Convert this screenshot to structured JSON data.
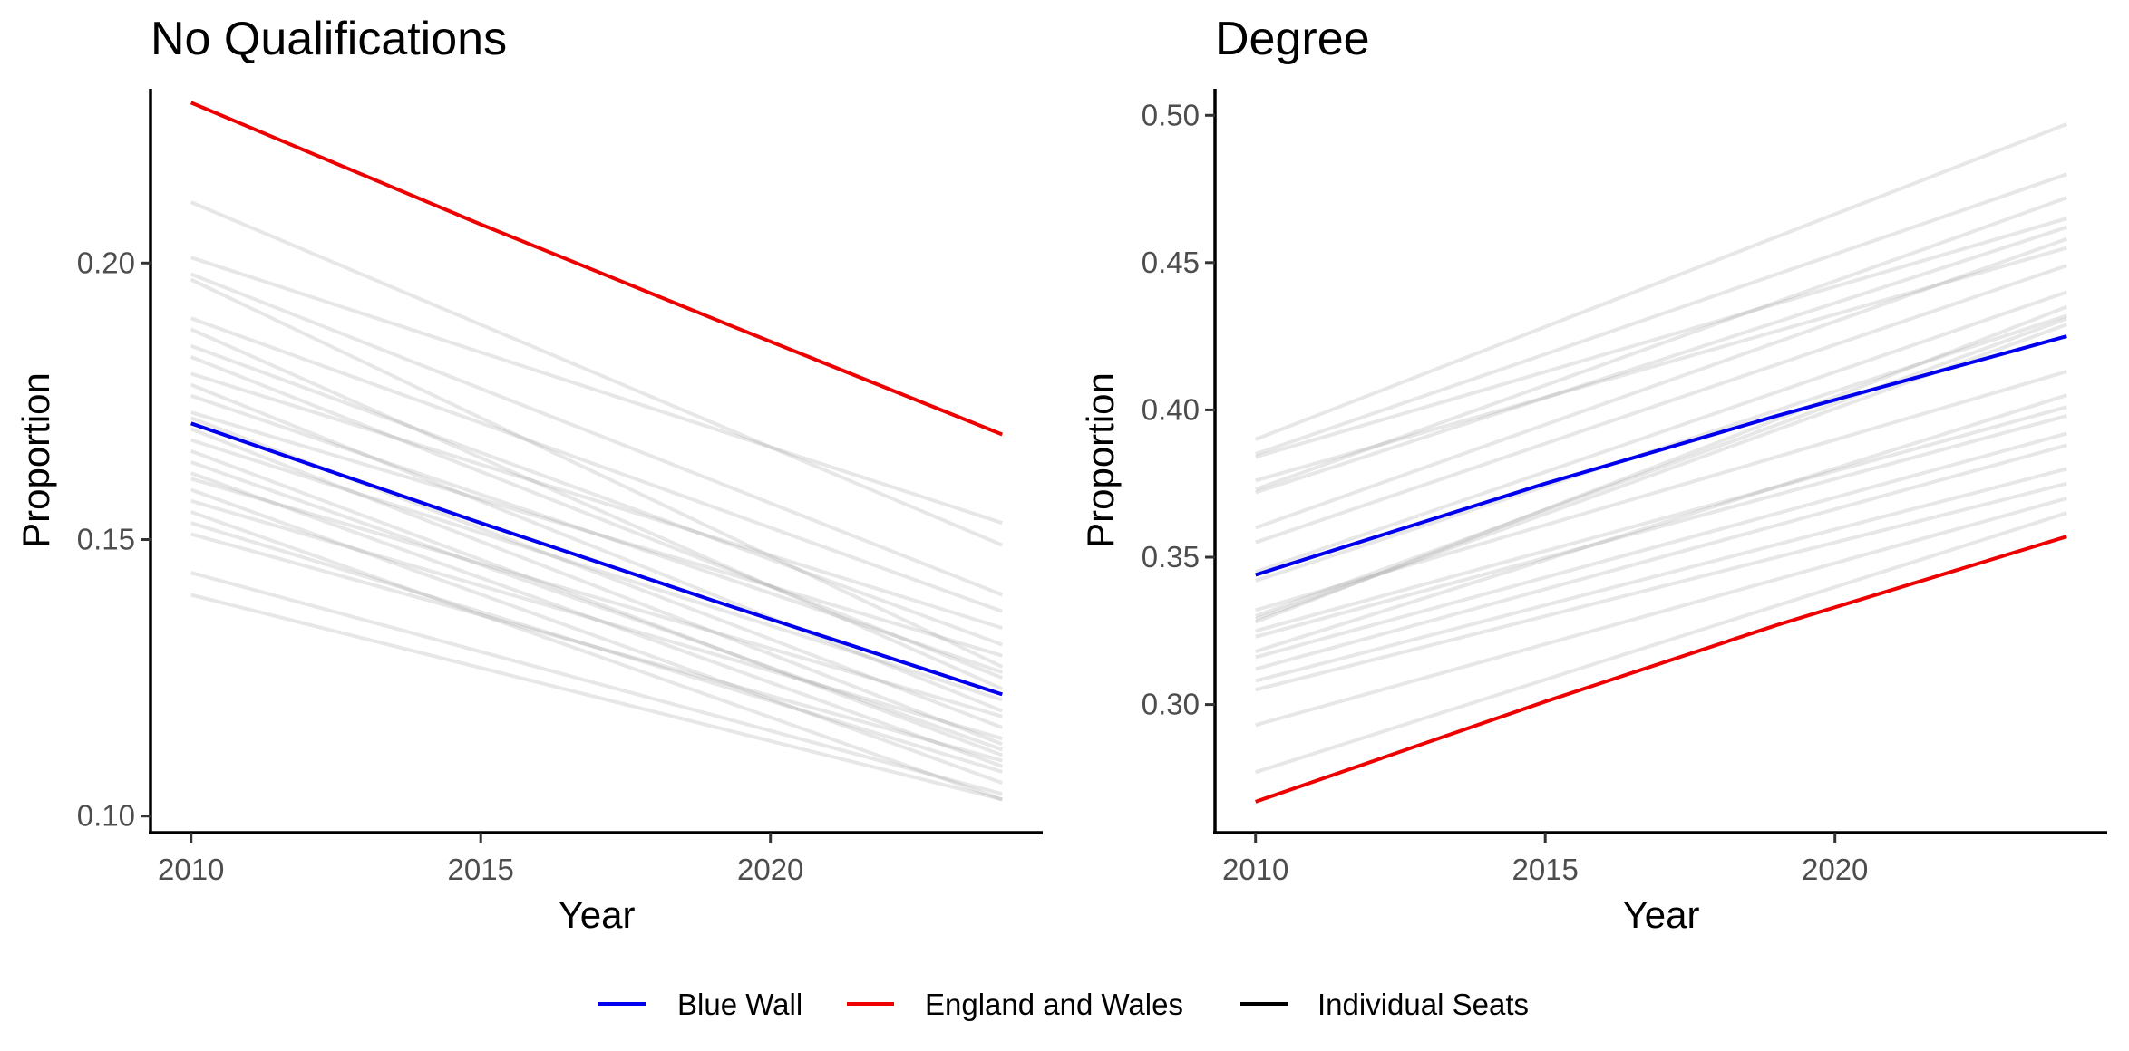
{
  "chart_data": [
    {
      "type": "line",
      "title": "No Qualifications",
      "xlabel": "Year",
      "ylabel": "Proportion",
      "xlim": [
        2009.3,
        2024.7
      ],
      "ylim": [
        0.097,
        0.2315
      ],
      "xticks": [
        2010,
        2015,
        2020
      ],
      "xtick_labels": [
        "2010",
        "2015",
        "2020"
      ],
      "yticks": [
        0.1,
        0.15,
        0.2
      ],
      "ytick_labels": [
        "0.10",
        "0.15",
        "0.20"
      ],
      "series": [
        {
          "name": "Blue Wall",
          "color": "#0000ee",
          "x": [
            2010,
            2015,
            2019,
            2024
          ],
          "y": [
            0.171,
            0.153,
            0.139,
            0.122
          ]
        },
        {
          "name": "England and Wales",
          "color": "#ee0000",
          "x": [
            2010,
            2015,
            2019,
            2024
          ],
          "y": [
            0.229,
            0.207,
            0.19,
            0.169
          ]
        }
      ],
      "seats": {
        "name": "Individual Seats",
        "color": "#999999",
        "x": [
          2010,
          2024
        ],
        "start": [
          0.211,
          0.201,
          0.198,
          0.197,
          0.19,
          0.188,
          0.185,
          0.183,
          0.18,
          0.178,
          0.176,
          0.173,
          0.172,
          0.17,
          0.168,
          0.166,
          0.164,
          0.162,
          0.161,
          0.159,
          0.157,
          0.155,
          0.153,
          0.151,
          0.144,
          0.14
        ],
        "end": [
          0.149,
          0.153,
          0.14,
          0.127,
          0.137,
          0.123,
          0.131,
          0.125,
          0.134,
          0.119,
          0.126,
          0.129,
          0.116,
          0.113,
          0.121,
          0.111,
          0.112,
          0.109,
          0.118,
          0.106,
          0.114,
          0.103,
          0.108,
          0.11,
          0.104,
          0.103
        ]
      }
    },
    {
      "type": "line",
      "title": "Degree",
      "xlabel": "Year",
      "ylabel": "Proportion",
      "xlim": [
        2009.3,
        2024.7
      ],
      "ylim": [
        0.2565,
        0.509
      ],
      "xticks": [
        2010,
        2015,
        2020
      ],
      "xtick_labels": [
        "2010",
        "2015",
        "2020"
      ],
      "yticks": [
        0.3,
        0.35,
        0.4,
        0.45,
        0.5
      ],
      "ytick_labels": [
        "0.30",
        "0.35",
        "0.40",
        "0.45",
        "0.50"
      ],
      "series": [
        {
          "name": "Blue Wall",
          "color": "#0000ee",
          "x": [
            2010,
            2015,
            2019,
            2024
          ],
          "y": [
            0.344,
            0.375,
            0.398,
            0.425
          ]
        },
        {
          "name": "England and Wales",
          "color": "#ee0000",
          "x": [
            2010,
            2015,
            2019,
            2024
          ],
          "y": [
            0.267,
            0.301,
            0.327,
            0.357
          ]
        }
      ],
      "seats": {
        "name": "Individual Seats",
        "color": "#999999",
        "x": [
          2010,
          2024
        ],
        "start": [
          0.39,
          0.385,
          0.384,
          0.376,
          0.373,
          0.372,
          0.36,
          0.355,
          0.345,
          0.342,
          0.332,
          0.33,
          0.329,
          0.328,
          0.325,
          0.323,
          0.318,
          0.316,
          0.312,
          0.308,
          0.305,
          0.293,
          0.277
        ],
        "end": [
          0.497,
          0.48,
          0.465,
          0.455,
          0.472,
          0.462,
          0.458,
          0.449,
          0.44,
          0.432,
          0.413,
          0.431,
          0.429,
          0.435,
          0.401,
          0.398,
          0.405,
          0.392,
          0.388,
          0.38,
          0.375,
          0.37,
          0.365
        ]
      }
    }
  ],
  "legend": {
    "position": "bottom",
    "items": [
      {
        "label": "Blue Wall",
        "color": "#0000ee"
      },
      {
        "label": "England and Wales",
        "color": "#ee0000"
      },
      {
        "label": "Individual Seats",
        "color": "#000000"
      }
    ]
  }
}
